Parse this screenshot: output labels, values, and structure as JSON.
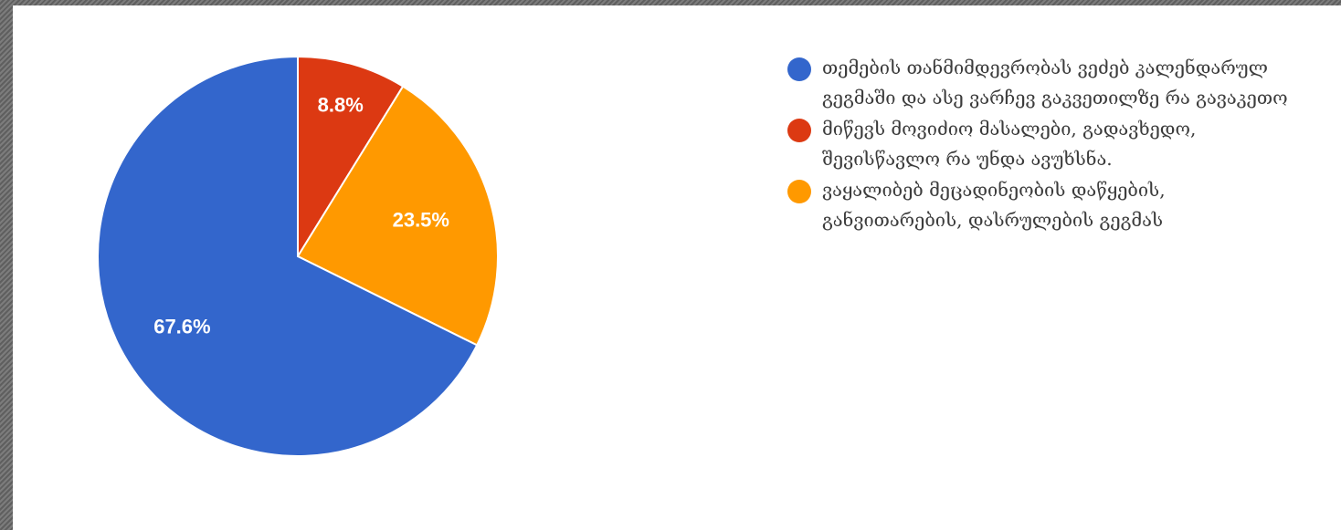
{
  "chart_data": {
    "type": "pie",
    "title": "",
    "series": [
      {
        "values": [
          67.6,
          8.8,
          23.5
        ],
        "labels": [
          "67.6%",
          "8.8%",
          "23.5%"
        ],
        "colors": [
          "#3366cc",
          "#dc3912",
          "#ff9900"
        ]
      }
    ],
    "legend": {
      "placement": "right",
      "entries": [
        "თემების თანმიმდევრობას ვეძებ კალენდარულ გეგმაში და ასე ვარჩევ გაკვეთილზე რა გავაკეთო",
        "მიწევს მოვიძიო მასალები, გადავხედო, შევისწავლო რა უნდა ავუხსნა.",
        "ვაყალიბებ მეცადინეობის დაწყების, განვითარების, დასრულების გეგმას"
      ]
    },
    "slice_label_color": "#ffffff"
  }
}
